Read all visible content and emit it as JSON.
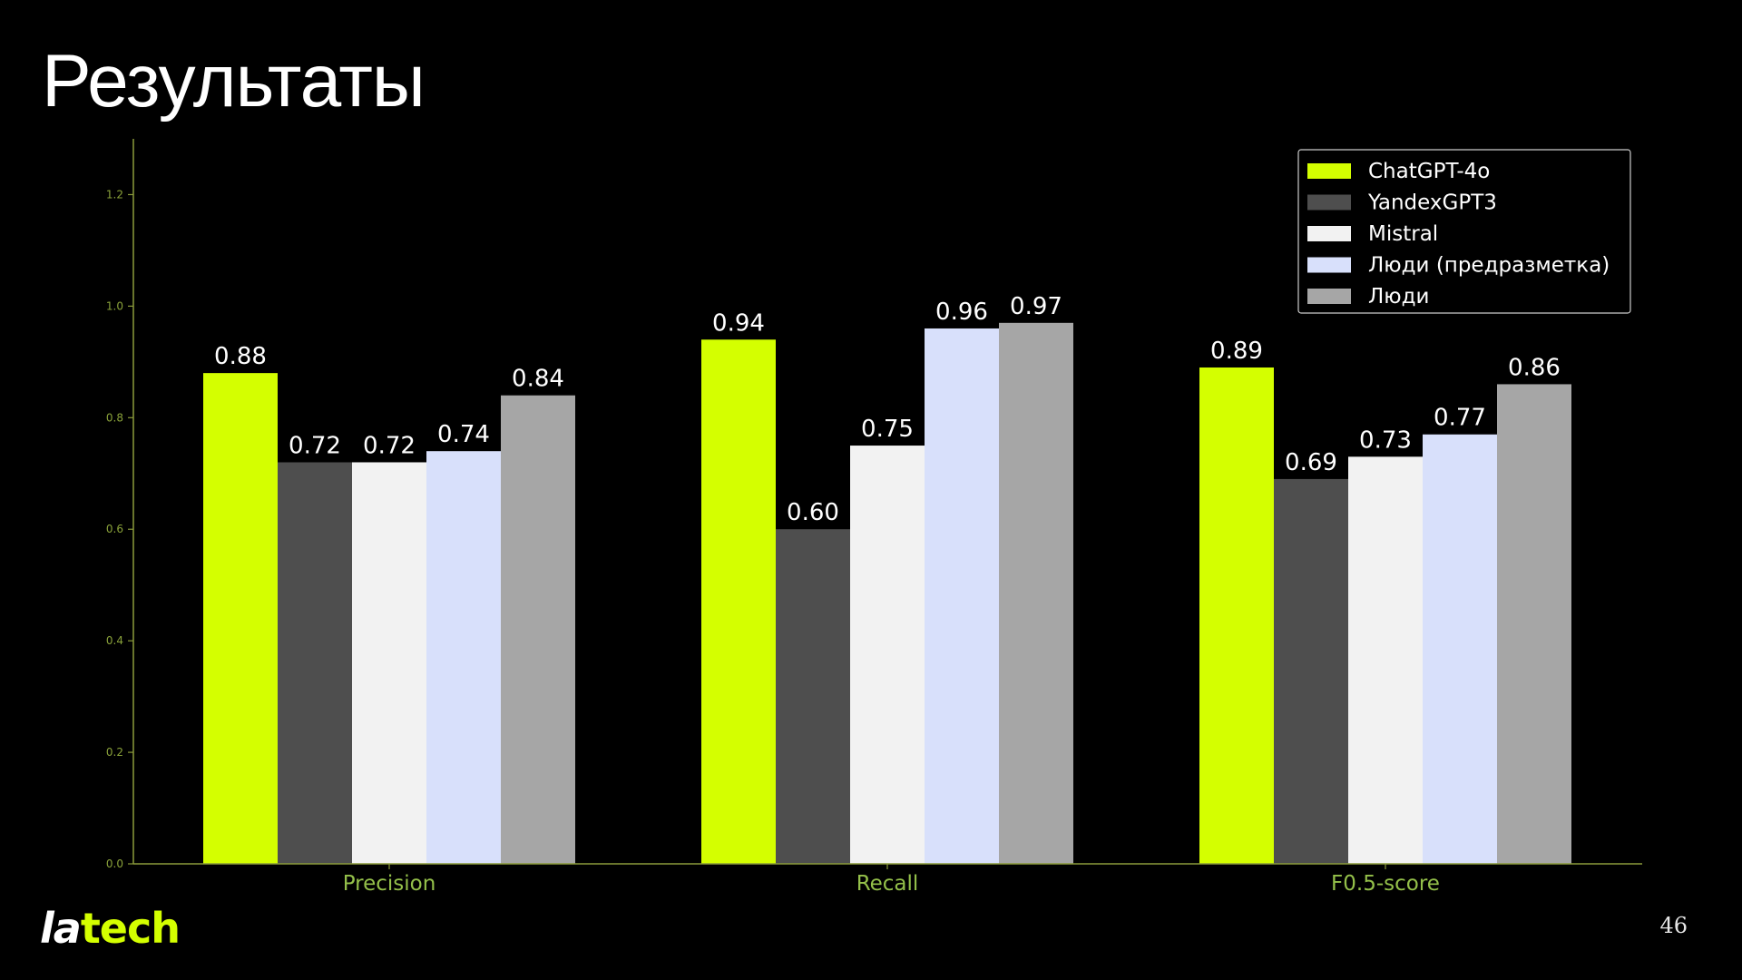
{
  "slide": {
    "title": "Результаты",
    "page_number": "46",
    "logo": {
      "part1": "la",
      "part2": "tech"
    }
  },
  "colors": {
    "background": "#000000",
    "axis": "#8a9a3a",
    "tick_text": "#8aa23a",
    "category_text": "#94c04a",
    "value_text": "#ffffff"
  },
  "chart_data": {
    "type": "bar",
    "title": "",
    "xlabel": "",
    "ylabel": "",
    "categories": [
      "Precision",
      "Recall",
      "F0.5-score"
    ],
    "ylim": [
      0,
      1.3
    ],
    "yticks": [
      "0.0",
      "0.2",
      "0.4",
      "0.6",
      "0.8",
      "1.0",
      "1.2"
    ],
    "grid": false,
    "legend": "top-right",
    "series": [
      {
        "name": "ChatGPT-4o",
        "color": "#d4ff00",
        "values": [
          0.88,
          0.94,
          0.89
        ],
        "labels": [
          "0.88",
          "0.94",
          "0.89"
        ]
      },
      {
        "name": "YandexGPT3",
        "color": "#4e4e4e",
        "values": [
          0.72,
          0.6,
          0.69
        ],
        "labels": [
          "0.72",
          "0.60",
          "0.69"
        ]
      },
      {
        "name": "Mistral",
        "color": "#f2f2f2",
        "values": [
          0.72,
          0.75,
          0.73
        ],
        "labels": [
          "0.72",
          "0.75",
          "0.73"
        ]
      },
      {
        "name": "Люди (предразметка)",
        "color": "#d8e0fb",
        "values": [
          0.74,
          0.96,
          0.77
        ],
        "labels": [
          "0.74",
          "0.96",
          "0.77"
        ]
      },
      {
        "name": "Люди",
        "color": "#a6a6a6",
        "values": [
          0.84,
          0.97,
          0.86
        ],
        "labels": [
          "0.84",
          "0.97",
          "0.86"
        ]
      }
    ]
  }
}
